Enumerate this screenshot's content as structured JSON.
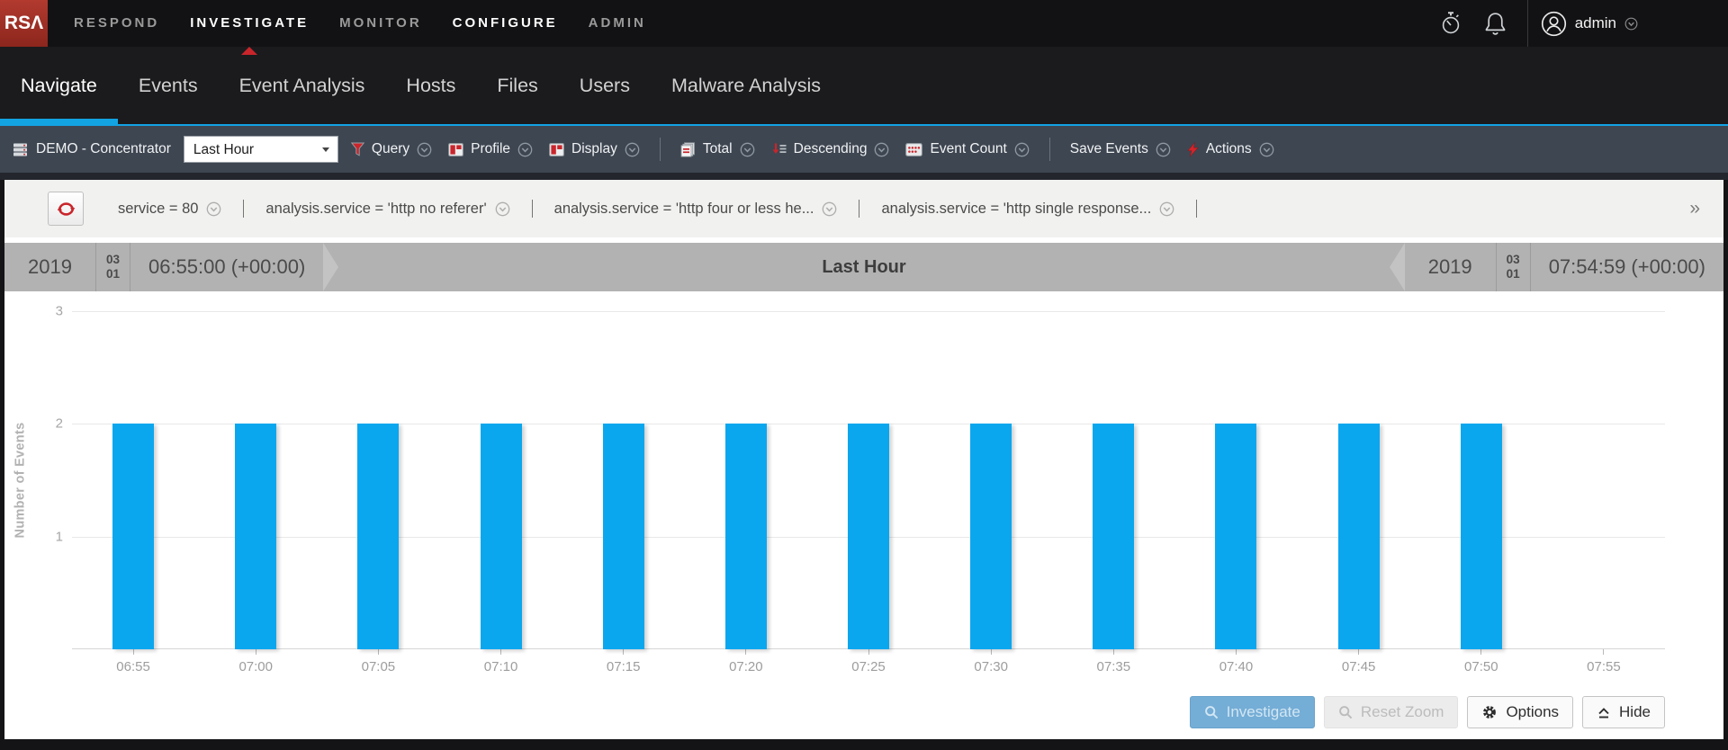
{
  "app": {
    "logo_text": "RSΛ",
    "top_nav": [
      {
        "label": "RESPOND"
      },
      {
        "label": "INVESTIGATE",
        "active": true,
        "emphasis": true
      },
      {
        "label": "MONITOR"
      },
      {
        "label": "CONFIGURE",
        "emphasis": true
      },
      {
        "label": "ADMIN"
      }
    ],
    "user": {
      "name": "admin",
      "icon": "user-icon"
    }
  },
  "sub_nav": {
    "active": "Navigate",
    "items": [
      "Navigate",
      "Events",
      "Event Analysis",
      "Hosts",
      "Files",
      "Users",
      "Malware Analysis"
    ]
  },
  "toolbar": {
    "device": {
      "icon": "server-icon",
      "label": "DEMO - Concentrator"
    },
    "time_range_select": {
      "value": "Last Hour"
    },
    "items": [
      {
        "type": "button",
        "icon": "funnel-icon",
        "label": "Query"
      },
      {
        "type": "button",
        "icon": "panel-icon",
        "label": "Profile"
      },
      {
        "type": "button",
        "icon": "panel-icon",
        "label": "Display"
      },
      {
        "type": "divider"
      },
      {
        "type": "button",
        "icon": "pages-icon",
        "label": "Total"
      },
      {
        "type": "button",
        "icon": "sort-descending-icon",
        "label": "Descending"
      },
      {
        "type": "button",
        "icon": "dots-grid-icon",
        "label": "Event Count"
      },
      {
        "type": "divider"
      },
      {
        "type": "button",
        "icon": null,
        "label": "Save Events"
      },
      {
        "type": "button",
        "icon": "lightning-icon",
        "label": "Actions"
      }
    ]
  },
  "filter_bar": {
    "refresh_icon": "refresh-icon",
    "filters": [
      "service = 80",
      "analysis.service = 'http no referer'",
      "analysis.service = 'http four or less he...",
      "analysis.service = 'http single response..."
    ],
    "overflow_indicator": "»"
  },
  "time_bar": {
    "start": {
      "year": "2019",
      "month": "03",
      "day": "01",
      "time": "06:55:00 (+00:00)"
    },
    "label": "Last Hour",
    "end": {
      "year": "2019",
      "month": "03",
      "day": "01",
      "time": "07:54:59 (+00:00)"
    }
  },
  "chart_data": {
    "type": "bar",
    "title": "Last Hour",
    "ylabel": "Number of Events",
    "xlabel": "",
    "categories": [
      "06:55",
      "07:00",
      "07:05",
      "07:10",
      "07:15",
      "07:20",
      "07:25",
      "07:30",
      "07:35",
      "07:40",
      "07:45",
      "07:50",
      "07:55"
    ],
    "values": [
      2,
      2,
      2,
      2,
      2,
      2,
      2,
      2,
      2,
      2,
      2,
      2,
      null
    ],
    "ylim": [
      0,
      3
    ],
    "yticks": [
      3,
      2,
      1
    ],
    "bar_color": "#0aa7ef",
    "grid": true,
    "legend": false
  },
  "footer_buttons": [
    {
      "label": "Investigate",
      "icon": "search-icon",
      "state": "primary-disabled"
    },
    {
      "label": "Reset Zoom",
      "icon": "search-icon",
      "state": "disabled"
    },
    {
      "label": "Options",
      "icon": "gear-icon",
      "state": "normal"
    },
    {
      "label": "Hide",
      "icon": "collapse-icon",
      "state": "normal"
    }
  ],
  "colors": {
    "accent_blue": "#12a3e3",
    "bar_blue": "#0aa7ef",
    "brand_red": "#c9252b",
    "toolbar_bg": "#3e4651",
    "timebar_bg": "#b2b2b2"
  }
}
